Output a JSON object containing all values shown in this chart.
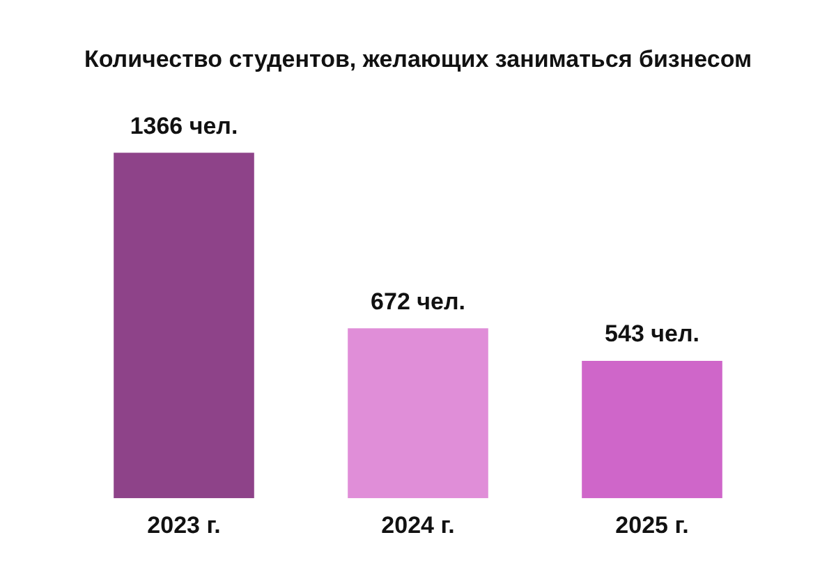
{
  "chart_data": {
    "type": "bar",
    "title": "Количество студентов, желающих заниматься бизнесом",
    "categories": [
      "2023 г.",
      "2024 г.",
      "2025 г."
    ],
    "values": [
      1366,
      672,
      543
    ],
    "colors": [
      "#8e4389",
      "#e08ed8",
      "#cf66c9"
    ],
    "value_labels": [
      "1366 чел.",
      "672 чел.",
      "543 чел."
    ],
    "grid": false,
    "legend": false
  }
}
